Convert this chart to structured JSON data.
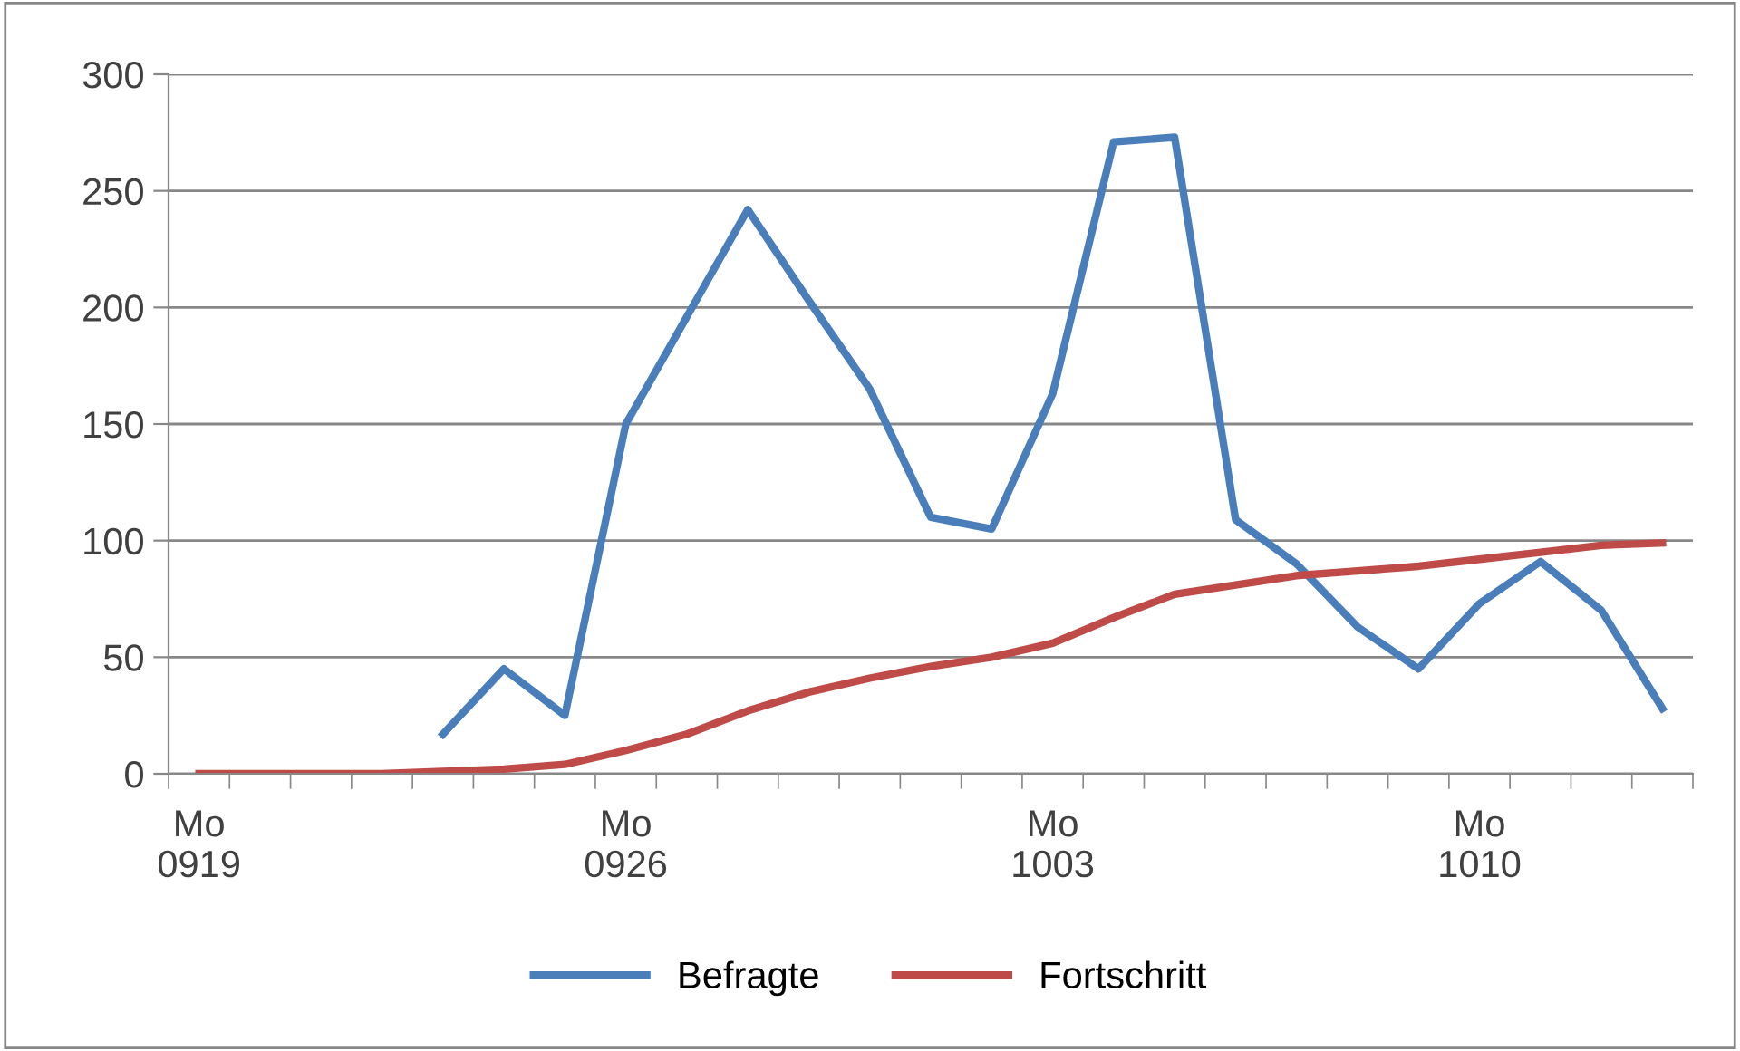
{
  "chart_data": {
    "type": "line",
    "categories": [
      "Mo\n0919",
      null,
      null,
      null,
      null,
      null,
      null,
      "Mo\n0926",
      null,
      null,
      null,
      null,
      null,
      null,
      "Mo\n1003",
      null,
      null,
      null,
      null,
      null,
      null,
      "Mo\n1010",
      null,
      null,
      null
    ],
    "series": [
      {
        "name": "Befragte",
        "color": "#4a7ebb",
        "values": [
          null,
          null,
          null,
          null,
          17,
          45,
          25,
          150,
          196,
          242,
          203,
          165,
          110,
          105,
          163,
          271,
          273,
          109,
          90,
          63,
          45,
          73,
          91,
          70,
          28
        ]
      },
      {
        "name": "Fortschritt",
        "color": "#be4b48",
        "values": [
          0,
          0,
          0,
          0,
          1,
          2,
          4,
          10,
          17,
          27,
          35,
          41,
          46,
          50,
          56,
          67,
          77,
          81,
          85,
          87,
          89,
          92,
          95,
          98,
          99
        ]
      }
    ],
    "ylim": [
      0,
      300
    ],
    "yticks": [
      0,
      50,
      100,
      150,
      200,
      250,
      300
    ],
    "grid": "y",
    "legend": "bottom",
    "marker": "none",
    "line_style": "solid"
  }
}
